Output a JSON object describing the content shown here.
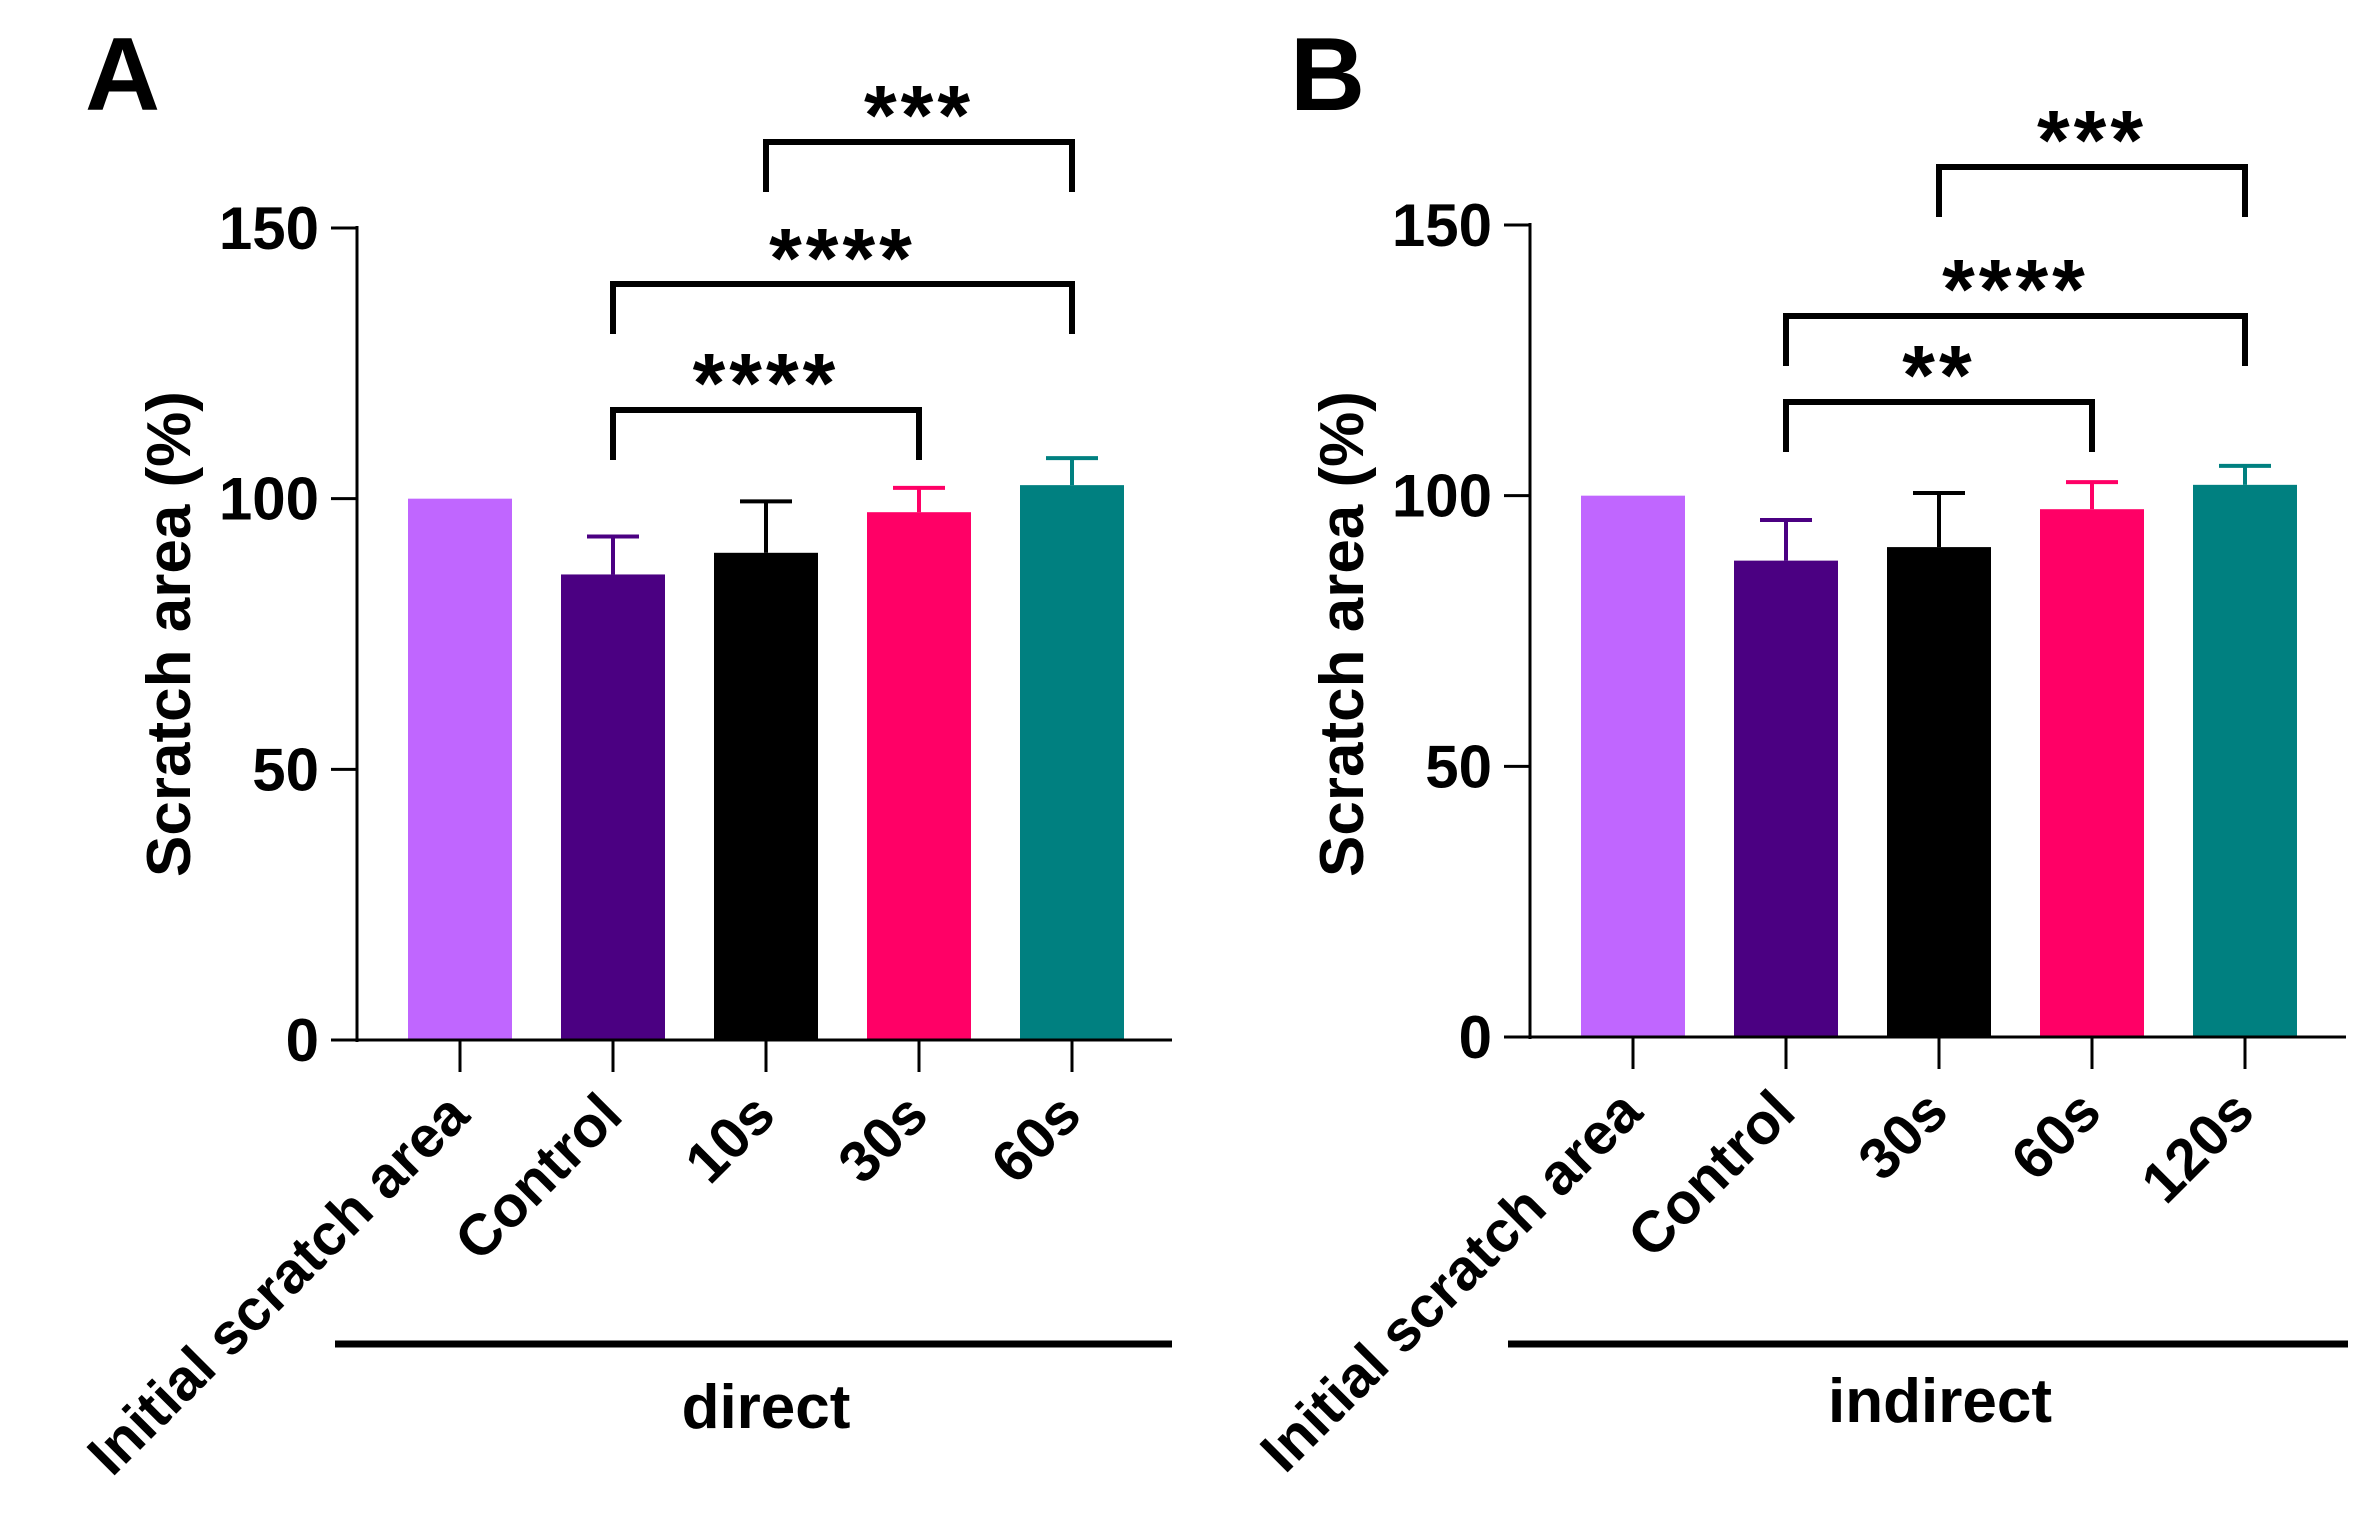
{
  "chart_data": [
    {
      "type": "bar",
      "panel": "A",
      "ylabel": "Scratch area (%)",
      "ylim": [
        0,
        150
      ],
      "yticks": [
        0,
        50,
        100,
        150
      ],
      "group_label": "direct",
      "categories": [
        "Initial scratch area",
        "Control",
        "10s",
        "30s",
        "60s"
      ],
      "values": [
        100,
        86,
        90,
        97.5,
        102.5
      ],
      "errors": [
        0,
        7,
        9.5,
        4.5,
        5
      ],
      "colors": [
        "#c066ff",
        "#4b0082",
        "#000000",
        "#ff0066",
        "#008080"
      ],
      "significance": [
        {
          "from": 1,
          "to": 3,
          "label": "****"
        },
        {
          "from": 1,
          "to": 4,
          "label": "****"
        },
        {
          "from": 2,
          "to": 4,
          "label": "***"
        }
      ]
    },
    {
      "type": "bar",
      "panel": "B",
      "ylabel": "Scratch area (%)",
      "ylim": [
        0,
        150
      ],
      "yticks": [
        0,
        50,
        100,
        150
      ],
      "group_label": "indirect",
      "categories": [
        "Initial scratch area",
        "Control",
        "30s",
        "60s",
        "120s"
      ],
      "values": [
        100,
        88,
        90.5,
        97.5,
        102
      ],
      "errors": [
        0,
        7.5,
        10,
        5,
        3.5
      ],
      "colors": [
        "#c066ff",
        "#4b0082",
        "#000000",
        "#ff0066",
        "#008080"
      ],
      "significance": [
        {
          "from": 1,
          "to": 3,
          "label": "**"
        },
        {
          "from": 1,
          "to": 4,
          "label": "****"
        },
        {
          "from": 2,
          "to": 4,
          "label": "***"
        }
      ]
    }
  ]
}
